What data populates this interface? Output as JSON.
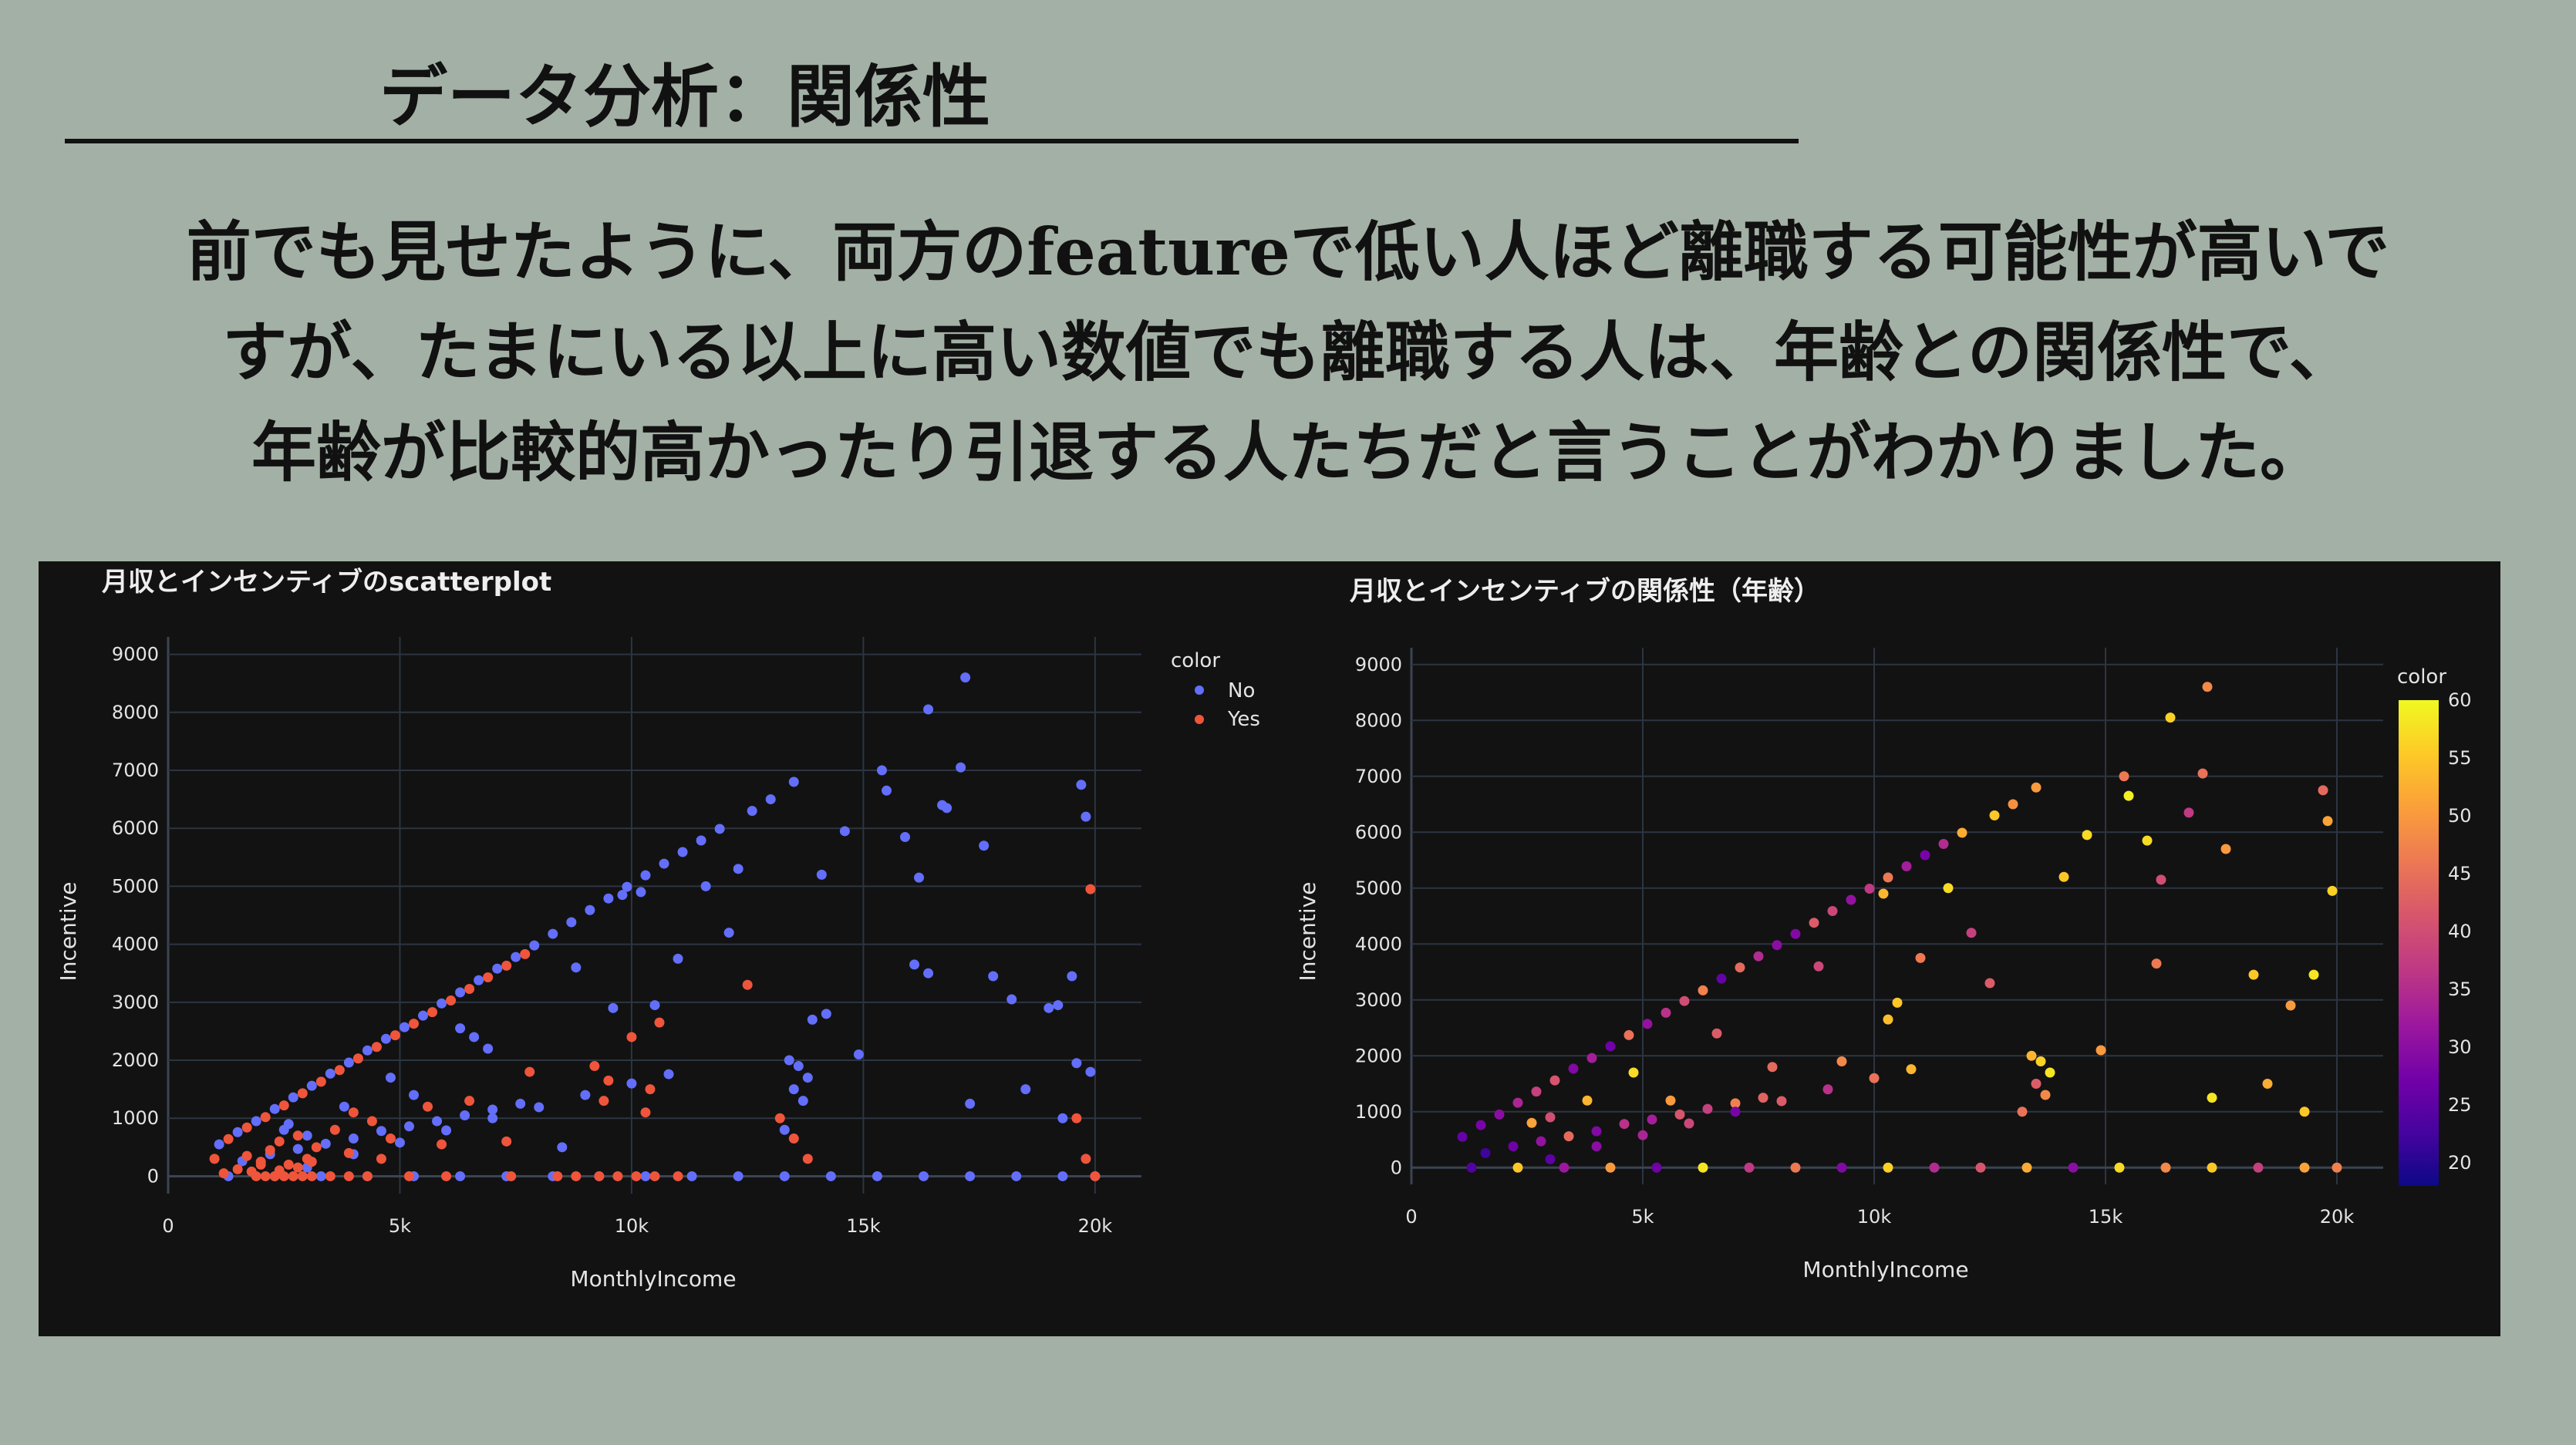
{
  "slide": {
    "title": "データ分析：関係性",
    "body_lines": [
      "前でも見せたように、両方のfeatureで低い人ほど離職する可能性が高いで",
      "すが、たまにいる以上に高い数値でも離職する人は、年齢との関係性で、",
      "年齢が比較的高かったり引退する人たちだと言うことがわかりました。"
    ]
  },
  "colors": {
    "slide_bg": "#a3b0a5",
    "panel_bg": "#121212",
    "no": "#636efa",
    "yes": "#ef553b",
    "colorscale": [
      "#0d0887",
      "#46039f",
      "#7201a8",
      "#9c179e",
      "#bd3786",
      "#d8576b",
      "#ed7953",
      "#fb9f3a",
      "#fdca26",
      "#f0f921"
    ]
  },
  "chart_data": [
    {
      "type": "scatter",
      "title": "月収とインセンティブのscatterplot",
      "xlabel": "MonthlyIncome",
      "ylabel": "Incentive",
      "xlim": [
        0,
        21000
      ],
      "ylim": [
        -300,
        9300
      ],
      "xticks": [
        0,
        5000,
        10000,
        15000,
        20000
      ],
      "xtick_labels": [
        "0",
        "5k",
        "10k",
        "15k",
        "20k"
      ],
      "yticks": [
        0,
        1000,
        2000,
        3000,
        4000,
        5000,
        6000,
        7000,
        8000,
        9000
      ],
      "ytick_labels": [
        "0",
        "1000",
        "2000",
        "3000",
        "4000",
        "5000",
        "6000",
        "7000",
        "8000",
        "9000"
      ],
      "legend": {
        "title": "color",
        "entries": [
          "No",
          "Yes"
        ],
        "position": "top-right"
      },
      "series": [
        {
          "name": "No",
          "x": [
            1100,
            1500,
            1900,
            2300,
            2700,
            3100,
            3500,
            3900,
            4300,
            4700,
            5100,
            5500,
            5900,
            6300,
            6700,
            7100,
            7500,
            7900,
            8300,
            8700,
            9100,
            9500,
            9900,
            10300,
            10700,
            11100,
            11500,
            11900,
            12600,
            13000,
            13500,
            1600,
            2200,
            2800,
            3400,
            4000,
            4600,
            5200,
            5800,
            6400,
            7000,
            7600,
            3000,
            4000,
            5000,
            6000,
            7000,
            8000,
            9000,
            10000,
            10800,
            1300,
            2300,
            3300,
            4300,
            5300,
            6300,
            7300,
            8300,
            9300,
            10300,
            11300,
            12300,
            13300,
            14300,
            15300,
            16300,
            17300,
            18300,
            19300,
            20000,
            13400,
            13600,
            13800,
            13500,
            13700,
            13300,
            13900,
            14100,
            14600,
            14900,
            15400,
            15500,
            15900,
            16200,
            16400,
            17100,
            17200,
            16800,
            16700,
            17600,
            17800,
            18200,
            19000,
            19200,
            19500,
            19700,
            19800,
            19600,
            19900,
            14200,
            12100,
            11000,
            10500,
            8800,
            9600,
            6300,
            6600,
            6900,
            4800,
            3800,
            5300,
            2500,
            2600,
            3000,
            16100,
            16400,
            17300,
            18500,
            19300,
            12300,
            11600,
            10200,
            9800,
            8500
          ],
          "y": [
            550,
            760,
            950,
            1160,
            1360,
            1560,
            1770,
            1960,
            2170,
            2370,
            2570,
            2770,
            2980,
            3170,
            3380,
            3580,
            3780,
            3980,
            4180,
            4380,
            4590,
            4790,
            4990,
            5190,
            5390,
            5590,
            5790,
            5990,
            6300,
            6500,
            6800,
            260,
            380,
            470,
            560,
            650,
            780,
            860,
            950,
            1050,
            1150,
            1250,
            150,
            380,
            580,
            790,
            1000,
            1190,
            1400,
            1600,
            1760,
            0,
            0,
            0,
            0,
            0,
            0,
            0,
            0,
            0,
            0,
            0,
            0,
            0,
            0,
            0,
            0,
            0,
            0,
            0,
            0,
            2000,
            1900,
            1700,
            1500,
            1300,
            800,
            2700,
            5200,
            5950,
            2100,
            7000,
            6650,
            5850,
            5150,
            8050,
            7050,
            8600,
            6350,
            6400,
            5700,
            3450,
            3050,
            2900,
            2950,
            3450,
            6750,
            6200,
            1950,
            1800,
            2800,
            4200,
            3750,
            2950,
            3600,
            2900,
            2550,
            2400,
            2200,
            1700,
            1200,
            1400,
            800,
            900,
            700,
            3650,
            3500,
            1250,
            1500,
            1000,
            5300,
            5000,
            4900,
            4850,
            500
          ],
          "color": "#636efa"
        },
        {
          "name": "Yes",
          "x": [
            1000,
            1300,
            1700,
            2100,
            2500,
            2900,
            3300,
            3700,
            4100,
            4500,
            4900,
            5300,
            5700,
            6100,
            6500,
            6900,
            7300,
            7700,
            1500,
            1800,
            2000,
            2200,
            2400,
            2600,
            2800,
            3000,
            3200,
            3600,
            4000,
            4400,
            4800,
            5600,
            6500,
            7800,
            9200,
            10600,
            1900,
            2100,
            2300,
            2500,
            2700,
            2900,
            3100,
            3500,
            3900,
            4300,
            5200,
            6000,
            7400,
            8400,
            8800,
            9300,
            9700,
            10100,
            10500,
            11000,
            1700,
            2400,
            3100,
            3900,
            4600,
            5900,
            7300,
            9500,
            10400,
            12500,
            13200,
            13500,
            13800,
            19600,
            19900,
            19800,
            20000,
            1200,
            2000,
            2800,
            10000,
            10300,
            9400
          ],
          "y": [
            300,
            640,
            840,
            1020,
            1220,
            1430,
            1630,
            1830,
            2030,
            2230,
            2430,
            2630,
            2830,
            3030,
            3230,
            3430,
            3630,
            3830,
            120,
            80,
            250,
            450,
            600,
            200,
            700,
            300,
            500,
            800,
            1100,
            950,
            650,
            1200,
            1300,
            1800,
            1900,
            2650,
            0,
            0,
            0,
            0,
            0,
            0,
            0,
            0,
            0,
            0,
            0,
            0,
            0,
            0,
            0,
            0,
            0,
            0,
            0,
            0,
            350,
            100,
            250,
            400,
            300,
            550,
            600,
            1650,
            1500,
            3300,
            1000,
            650,
            300,
            1000,
            4950,
            300,
            0,
            50,
            200,
            150,
            2400,
            1100,
            1300
          ],
          "color": "#ef553b"
        }
      ]
    },
    {
      "type": "scatter",
      "title": "月収とインセンティブの関係性（年齢）",
      "xlabel": "MonthlyIncome",
      "ylabel": "Incentive",
      "xlim": [
        0,
        21000
      ],
      "ylim": [
        -300,
        9300
      ],
      "xticks": [
        0,
        5000,
        10000,
        15000,
        20000
      ],
      "xtick_labels": [
        "0",
        "5k",
        "10k",
        "15k",
        "20k"
      ],
      "yticks": [
        0,
        1000,
        2000,
        3000,
        4000,
        5000,
        6000,
        7000,
        8000,
        9000
      ],
      "ytick_labels": [
        "0",
        "1000",
        "2000",
        "3000",
        "4000",
        "5000",
        "6000",
        "7000",
        "8000",
        "9000"
      ],
      "colorbar": {
        "title": "color",
        "min": 18,
        "max": 60,
        "ticks": [
          20,
          25,
          30,
          35,
          40,
          45,
          50,
          55,
          60
        ]
      },
      "points": {
        "x": [
          1100,
          1500,
          1900,
          2300,
          2700,
          3100,
          3500,
          3900,
          4300,
          4700,
          5100,
          5500,
          5900,
          6300,
          6700,
          7100,
          7500,
          7900,
          8300,
          8700,
          9100,
          9500,
          9900,
          10300,
          10700,
          11100,
          11500,
          11900,
          12600,
          13000,
          13500,
          1600,
          2200,
          2800,
          3400,
          4000,
          4600,
          5200,
          5800,
          6400,
          7000,
          7600,
          3000,
          4000,
          5000,
          6000,
          7000,
          8000,
          9000,
          10000,
          10800,
          1300,
          2300,
          3300,
          4300,
          5300,
          6300,
          7300,
          8300,
          9300,
          10300,
          11300,
          12300,
          13300,
          14300,
          15300,
          16300,
          17300,
          18300,
          19300,
          20000,
          13400,
          13600,
          13800,
          13500,
          13700,
          14100,
          14600,
          14900,
          15400,
          15500,
          15900,
          16200,
          16400,
          17100,
          17200,
          16800,
          17600,
          18200,
          19000,
          19500,
          19700,
          19800,
          19900,
          12100,
          11000,
          10500,
          8800,
          6600,
          4800,
          3800,
          2600,
          3000,
          16100,
          17300,
          18500,
          19300,
          9300,
          10300,
          12500,
          13200,
          11600,
          10200,
          7800,
          5600
        ],
        "y": [
          550,
          760,
          950,
          1160,
          1360,
          1560,
          1770,
          1960,
          2170,
          2370,
          2570,
          2770,
          2980,
          3170,
          3380,
          3580,
          3780,
          3980,
          4180,
          4380,
          4590,
          4790,
          4990,
          5190,
          5390,
          5590,
          5790,
          5990,
          6300,
          6500,
          6800,
          260,
          380,
          470,
          560,
          650,
          780,
          860,
          950,
          1050,
          1150,
          1250,
          150,
          380,
          580,
          790,
          1000,
          1190,
          1400,
          1600,
          1760,
          0,
          0,
          0,
          0,
          0,
          0,
          0,
          0,
          0,
          0,
          0,
          0,
          0,
          0,
          0,
          0,
          0,
          0,
          0,
          0,
          2000,
          1900,
          1700,
          1500,
          1300,
          5200,
          5950,
          2100,
          7000,
          6650,
          5850,
          5150,
          8050,
          7050,
          8600,
          6350,
          5700,
          3450,
          2900,
          3450,
          6750,
          6200,
          4950,
          4200,
          3750,
          2950,
          3600,
          2400,
          1700,
          1200,
          800,
          900,
          3650,
          1250,
          1500,
          1000,
          1900,
          2650,
          3300,
          1000,
          5000,
          4900,
          1800,
          1200
        ],
        "age": [
          26,
          28,
          30,
          34,
          38,
          41,
          29,
          33,
          27,
          45,
          31,
          36,
          40,
          47,
          26,
          44,
          35,
          30,
          29,
          42,
          39,
          31,
          37,
          46,
          33,
          28,
          35,
          52,
          55,
          49,
          50,
          22,
          27,
          31,
          44,
          29,
          36,
          33,
          41,
          38,
          47,
          43,
          25,
          30,
          34,
          39,
          28,
          42,
          36,
          45,
          53,
          24,
          55,
          32,
          50,
          27,
          58,
          37,
          46,
          29,
          56,
          35,
          41,
          52,
          30,
          57,
          48,
          55,
          38,
          51,
          47,
          53,
          56,
          58,
          42,
          48,
          55,
          57,
          50,
          46,
          59,
          57,
          40,
          56,
          45,
          48,
          37,
          50,
          55,
          50,
          58,
          44,
          51,
          56,
          38,
          46,
          55,
          39,
          42,
          57,
          53,
          51,
          40,
          46,
          58,
          52,
          55,
          48,
          54,
          42,
          45,
          57,
          53,
          44,
          50
        ]
      }
    }
  ]
}
